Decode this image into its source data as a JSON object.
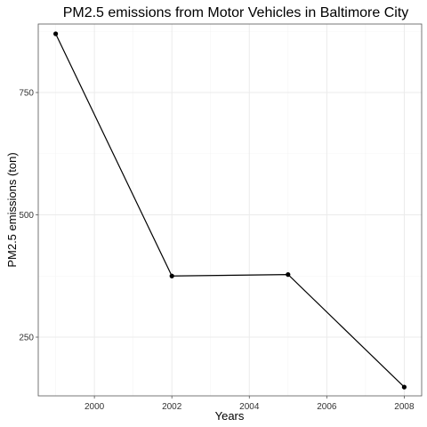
{
  "chart_data": {
    "type": "line",
    "title": "PM2.5 emissions from Motor Vehicles in Baltimore City",
    "xlabel": "Years",
    "ylabel": "PM2.5 emissions (ton)",
    "x": [
      1999,
      2002,
      2005,
      2008
    ],
    "series": [
      {
        "values": [
          870,
          375,
          378,
          148
        ]
      }
    ],
    "xlim": [
      1998.55,
      2008.45
    ],
    "ylim": [
      130,
      890
    ],
    "xticks": [
      2000,
      2002,
      2004,
      2006,
      2008
    ],
    "yticks": [
      250,
      500,
      750
    ],
    "grid": true,
    "legend": "none",
    "colors": {
      "line": "#000000",
      "points": "#000000",
      "grid": "#ebebeb",
      "border": "#555555"
    }
  }
}
